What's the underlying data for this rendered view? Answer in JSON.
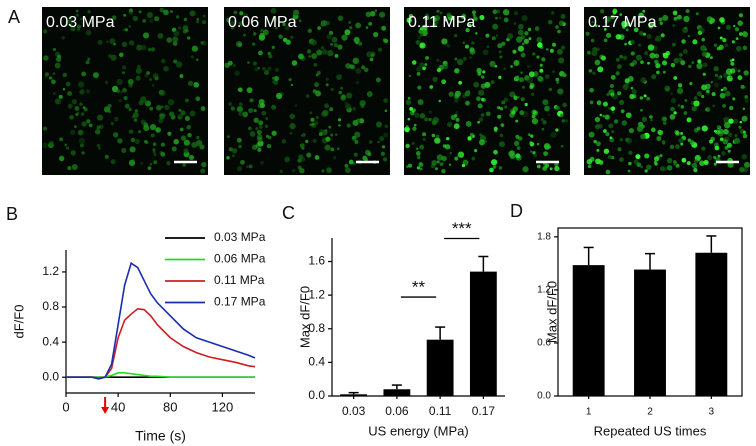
{
  "panel_a": {
    "letter": "A",
    "images": [
      {
        "label": "0.03 MPa"
      },
      {
        "label": "0.06 MPa"
      },
      {
        "label": "0.11 MPa"
      },
      {
        "label": "0.17 MPa"
      }
    ]
  },
  "chart_data": [
    {
      "type": "line",
      "letter": "B",
      "xlabel": "Time (s)",
      "ylabel": "dF/F0",
      "x": [
        0,
        10,
        20,
        25,
        30,
        35,
        40,
        45,
        50,
        55,
        60,
        65,
        70,
        80,
        90,
        100,
        110,
        120,
        130,
        140,
        145
      ],
      "series": [
        {
          "name": "0.03 MPa",
          "color": "#000000",
          "values": [
            0,
            0,
            0,
            0,
            0,
            0,
            0,
            0,
            0,
            0,
            0,
            0,
            0,
            0,
            0,
            0,
            0,
            0,
            0,
            0,
            0
          ]
        },
        {
          "name": "0.06 MPa",
          "color": "#22dd22",
          "values": [
            0,
            0,
            0,
            0,
            0,
            0.02,
            0.05,
            0.05,
            0.04,
            0.03,
            0.02,
            0.01,
            0.01,
            0,
            0,
            0,
            0,
            0,
            0,
            0,
            0
          ]
        },
        {
          "name": "0.11 MPa",
          "color": "#cc2020",
          "values": [
            0,
            0,
            0,
            -0.01,
            0,
            0.1,
            0.45,
            0.65,
            0.72,
            0.78,
            0.77,
            0.7,
            0.6,
            0.45,
            0.35,
            0.28,
            0.23,
            0.2,
            0.17,
            0.13,
            0.12
          ]
        },
        {
          "name": "0.17 MPa",
          "color": "#1a2db0",
          "values": [
            0,
            0,
            0,
            -0.02,
            0,
            0.15,
            0.6,
            1.05,
            1.3,
            1.25,
            1.1,
            0.95,
            0.85,
            0.7,
            0.55,
            0.45,
            0.4,
            0.35,
            0.3,
            0.25,
            0.22
          ]
        }
      ],
      "xlim": [
        0,
        145
      ],
      "ylim": [
        -0.18,
        1.45
      ],
      "xticks": [
        0,
        40,
        80,
        120
      ],
      "yticks": [
        {
          "value": 0,
          "label": "0.0"
        },
        0.4,
        0.8,
        1.2
      ]
    },
    {
      "type": "bar",
      "letter": "C",
      "xlabel": "US energy (MPa)",
      "ylabel": "Max dF/F0",
      "categories": [
        "0.03",
        "0.06",
        "0.11",
        "0.17"
      ],
      "values": [
        0.02,
        0.08,
        0.67,
        1.48
      ],
      "errors": [
        0.02,
        0.05,
        0.15,
        0.18
      ],
      "color": "#000000",
      "ylim": [
        0,
        1.88
      ],
      "yticks": [
        {
          "value": 0,
          "label": "0.0"
        },
        0.4,
        0.8,
        1.2,
        1.6
      ],
      "annotations": [
        "**",
        "***"
      ]
    },
    {
      "type": "bar",
      "letter": "D",
      "xlabel": "Repeated US times",
      "ylabel": "Max dF/F0",
      "categories": [
        "1",
        "2",
        "3"
      ],
      "values": [
        1.48,
        1.43,
        1.62
      ],
      "errors": [
        0.2,
        0.18,
        0.19
      ],
      "color": "#000000",
      "ylim": [
        0,
        1.9
      ],
      "yticks": [
        {
          "value": 0,
          "label": "0.0"
        },
        0.6,
        1.2,
        1.8
      ]
    }
  ]
}
